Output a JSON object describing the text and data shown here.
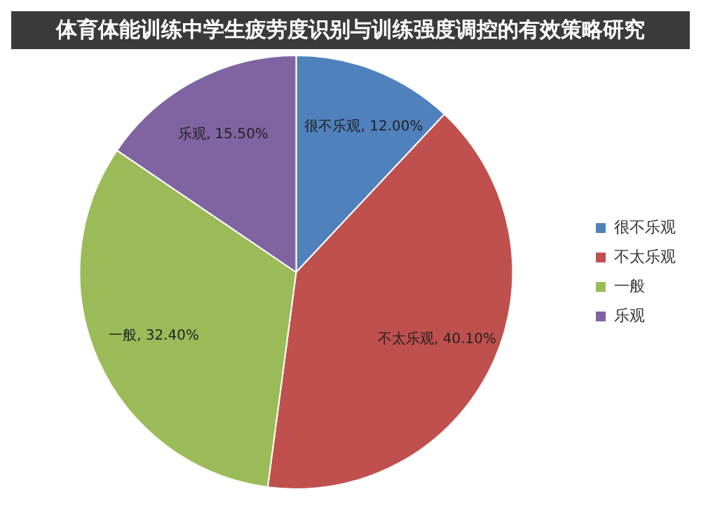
{
  "chart_data": {
    "type": "pie",
    "title": "体育体能训练中学生疲劳度识别与训练强度调控的有效策略研究",
    "categories": [
      "很不乐观",
      "不太乐观",
      "一般",
      "乐观"
    ],
    "values": [
      12.0,
      40.1,
      32.4,
      15.5
    ],
    "value_labels": [
      "很不乐观, 12.00%",
      "不太乐观, 40.10%",
      "一般, 32.40%",
      "乐观, 15.50%"
    ],
    "colors": [
      "#4f81bd",
      "#c0504d",
      "#9bbb59",
      "#8064a2"
    ],
    "legend": "right"
  }
}
